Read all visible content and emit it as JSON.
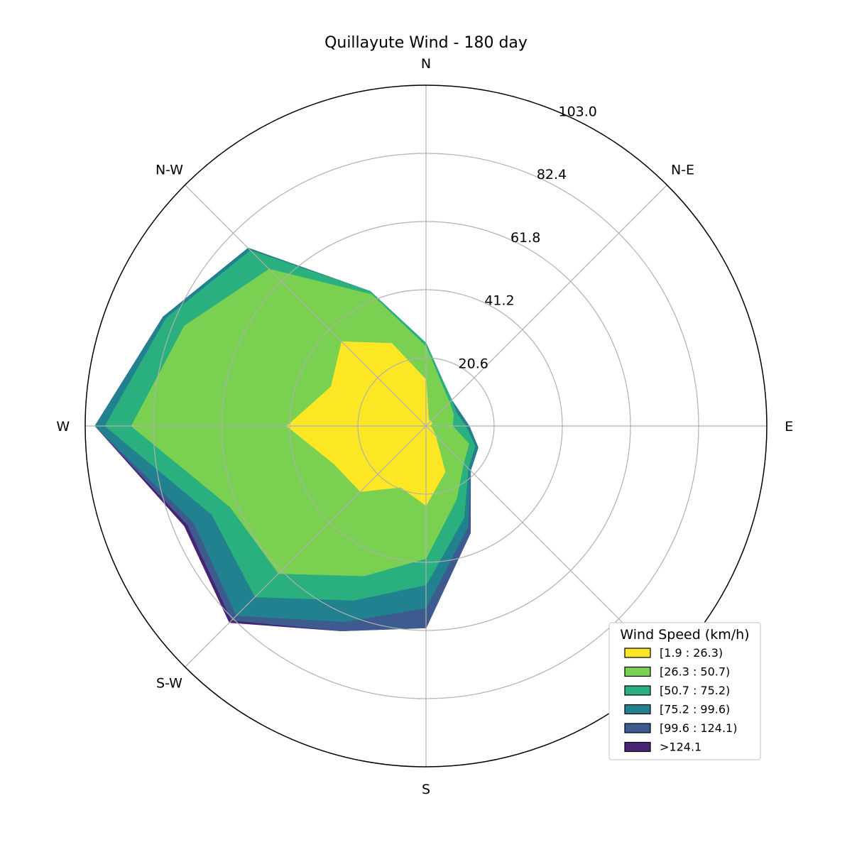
{
  "chart_data": {
    "type": "windrose",
    "title": "Quillayute Wind - 180 day",
    "directions": [
      "N",
      "N-E",
      "E",
      "S-E",
      "S",
      "S-W",
      "W",
      "N-W"
    ],
    "direction_angles_deg": [
      0,
      22.5,
      45,
      67.5,
      90,
      112.5,
      135,
      157.5,
      180,
      202.5,
      225,
      247.5,
      270,
      292.5,
      315,
      337.5
    ],
    "radial_ticks": [
      20.6,
      41.2,
      61.8,
      82.4,
      103.0
    ],
    "radial_tick_labels": [
      "20.6",
      "41.2",
      "61.8",
      "82.4",
      "103.0"
    ],
    "rmax": 103.0,
    "legend": {
      "title": "Wind Speed (km/h)",
      "placement": "lower-right"
    },
    "series": [
      {
        "name": "[1.9 : 26.3)",
        "color": "#fde725",
        "values": [
          14,
          2,
          2,
          2,
          1,
          2,
          4,
          15,
          24,
          20,
          28,
          30,
          42,
          31,
          36,
          27
        ]
      },
      {
        "name": "[26.3 : 50.7)",
        "color": "#7ad151",
        "values": [
          24,
          13,
          10,
          9,
          8,
          14,
          16,
          24,
          40,
          49,
          63,
          64,
          89,
          79,
          67,
          43
        ]
      },
      {
        "name": "[50.7 : 75.2)",
        "color": "#2ab07f",
        "values": [
          25,
          14,
          11,
          10,
          12,
          16,
          18,
          30,
          48,
          57,
          73,
          70,
          97,
          85,
          75,
          44
        ]
      },
      {
        "name": "[75.2 : 99.6)",
        "color": "#22818f",
        "values": [
          25,
          14,
          11,
          11,
          13,
          17,
          19,
          33,
          55,
          64,
          81,
          76,
          100,
          86,
          76,
          44
        ]
      },
      {
        "name": "[99.6 : 124.1)",
        "color": "#3e5b8f",
        "values": [
          25,
          14,
          11,
          11,
          13,
          17,
          19,
          35,
          61,
          67,
          83,
          78,
          100,
          86,
          76,
          44
        ]
      },
      {
        "name": ">124.1",
        "color": "#482475",
        "values": [
          25,
          14,
          11,
          11,
          13,
          17,
          19,
          35,
          61,
          67,
          84,
          79,
          100,
          86,
          76,
          44
        ]
      }
    ]
  }
}
